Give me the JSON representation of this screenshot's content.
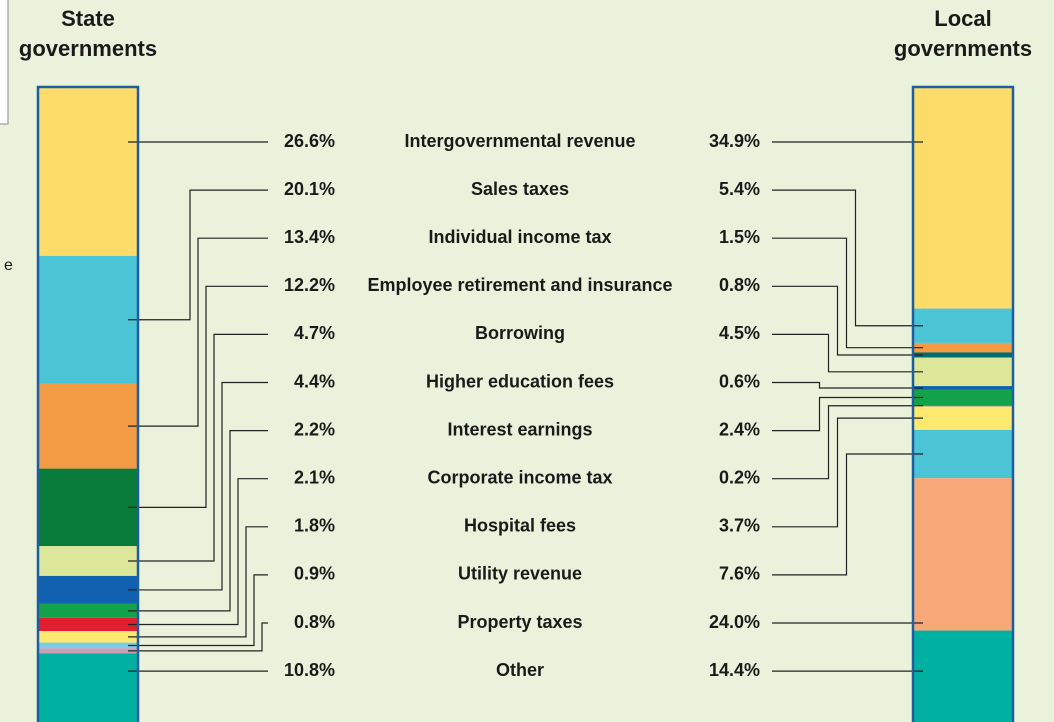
{
  "chart_data": {
    "type": "stacked-bar-pair",
    "annotation": "e",
    "categories": [
      "Intergovernmental revenue",
      "Sales taxes",
      "Individual income tax",
      "Employee retirement and insurance",
      "Borrowing",
      "Higher education fees",
      "Interest earnings",
      "Corporate income tax",
      "Hospital fees",
      "Utility revenue",
      "Property taxes",
      "Other"
    ],
    "series": [
      {
        "name": "State governments",
        "values": [
          26.6,
          20.1,
          13.4,
          12.2,
          4.7,
          4.4,
          2.2,
          2.1,
          1.8,
          0.9,
          0.8,
          10.8
        ],
        "value_labels": [
          "26.6%",
          "20.1%",
          "13.4%",
          "12.2%",
          "4.7%",
          "4.4%",
          "2.2%",
          "2.1%",
          "1.8%",
          "0.9%",
          "0.8%",
          "10.8%"
        ],
        "colors": [
          "#fddc6a",
          "#4bc4d6",
          "#f49c45",
          "#087a3a",
          "#dde79a",
          "#1060b0",
          "#12a24a",
          "#e02030",
          "#fde870",
          "#79cde8",
          "#c9a0b8",
          "#00b0a0"
        ]
      },
      {
        "name": "Local governments",
        "values": [
          34.9,
          5.4,
          1.5,
          0.8,
          4.5,
          0.6,
          2.4,
          0.2,
          3.7,
          7.6,
          24.0,
          14.4
        ],
        "value_labels": [
          "34.9%",
          "5.4%",
          "1.5%",
          "0.8%",
          "4.5%",
          "0.6%",
          "2.4%",
          "0.2%",
          "3.7%",
          "7.6%",
          "24.0%",
          "14.4%"
        ],
        "colors": [
          "#fddc6a",
          "#4bc4d6",
          "#f49c45",
          "#006c70",
          "#dde79a",
          "#1060b0",
          "#12a24a",
          "#8060a0",
          "#fde870",
          "#4bc4d6",
          "#f7a878",
          "#00b0a0"
        ]
      }
    ]
  }
}
